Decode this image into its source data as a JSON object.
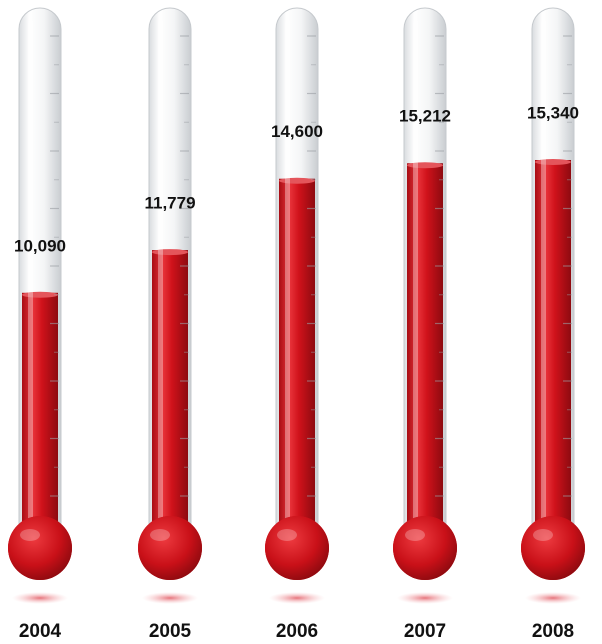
{
  "chart_data": {
    "type": "bar",
    "categories": [
      "2004",
      "2005",
      "2006",
      "2007",
      "2008"
    ],
    "values": [
      10090,
      11779,
      14600,
      15212,
      15340
    ],
    "value_labels": [
      "10,090",
      "11,779",
      "14,600",
      "15,212",
      "15,340"
    ],
    "color": "#d0121b"
  }
}
